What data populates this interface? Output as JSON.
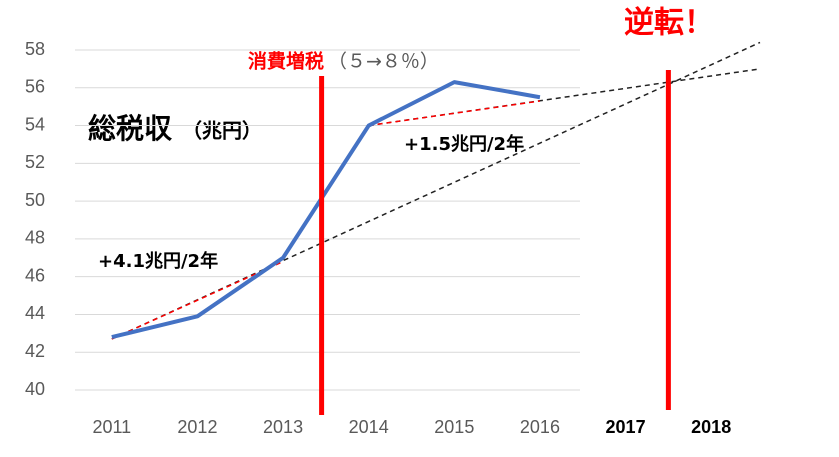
{
  "chart_data": {
    "type": "line",
    "title": "総税収",
    "y_unit": "（兆円）",
    "x": [
      2011,
      2012,
      2013,
      2014,
      2015,
      2016
    ],
    "xlim": [
      2010.57,
      2018.57
    ],
    "xticks": [
      2011,
      2012,
      2013,
      2014,
      2015,
      2016,
      2017,
      2018
    ],
    "ylim": [
      40,
      58
    ],
    "yticks": [
      40,
      42,
      44,
      46,
      48,
      50,
      52,
      54,
      56,
      58
    ],
    "grid": true,
    "series": [
      {
        "name": "総税収",
        "color": "#4472c4",
        "values": [
          42.8,
          43.9,
          47.0,
          54.0,
          56.3,
          55.5
        ]
      }
    ],
    "trend_lines": [
      {
        "color": "#222222",
        "x": [
          2011,
          2018.57
        ],
        "values": [
          42.7,
          58.4
        ]
      },
      {
        "color": "#222222",
        "x": [
          2014,
          2018.57
        ],
        "values": [
          54.0,
          57.0
        ]
      },
      {
        "color": "#ff0000",
        "x": [
          2011,
          2013
        ],
        "values": [
          42.7,
          46.8
        ]
      },
      {
        "color": "#ff0000",
        "x": [
          2014,
          2016
        ],
        "values": [
          54.0,
          55.3
        ]
      }
    ],
    "vlines": [
      {
        "color": "#ff0000",
        "x": 2013.45
      },
      {
        "color": "#ff0000",
        "x": 2017.5
      }
    ],
    "annotations": [
      "消費増税",
      "（５→８％）",
      "逆転！",
      "+1.5兆円/2年",
      "+4.1兆円/2年"
    ]
  }
}
